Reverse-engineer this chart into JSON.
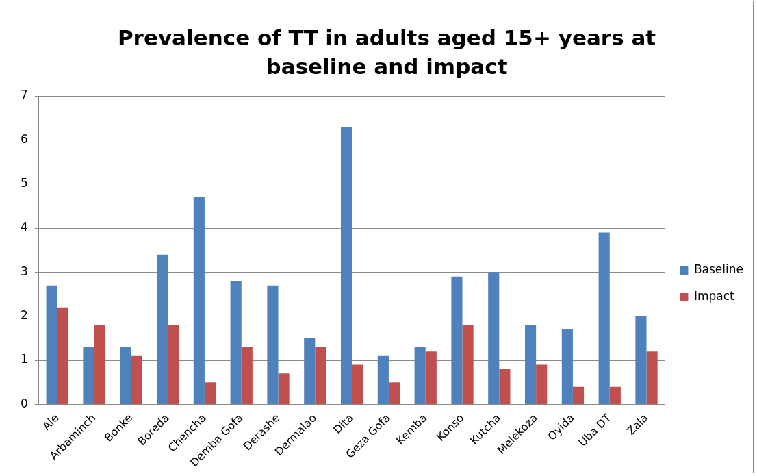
{
  "chart_data": {
    "type": "bar",
    "title": "Prevalence of TT in adults aged 15+ years at baseline and impact",
    "categories": [
      "Ale",
      "Arbaminch",
      "Bonke",
      "Boreda",
      "Chencha",
      "Demba Gofa",
      "Derashe",
      "Dermalao",
      "Dita",
      "Geza Gofa",
      "Kemba",
      "Konso",
      "Kutcha",
      "Melekoza",
      "Oyida",
      "Uba DT",
      "Zala"
    ],
    "series": [
      {
        "name": "Baseline",
        "color": "#4f81bd",
        "values": [
          2.7,
          1.3,
          1.3,
          3.4,
          4.7,
          2.8,
          2.7,
          1.5,
          6.3,
          1.1,
          1.3,
          2.9,
          3.0,
          1.8,
          1.7,
          3.9,
          2.0
        ]
      },
      {
        "name": "Impact",
        "color": "#c0504d",
        "values": [
          2.2,
          1.8,
          1.1,
          1.8,
          0.5,
          1.3,
          0.7,
          1.3,
          0.9,
          0.5,
          1.2,
          1.8,
          0.8,
          0.9,
          0.4,
          0.4,
          1.2
        ]
      }
    ],
    "ylim": [
      0,
      7
    ],
    "yticks": [
      0,
      1,
      2,
      3,
      4,
      5,
      6,
      7
    ],
    "grid": "y",
    "legend": "right"
  }
}
